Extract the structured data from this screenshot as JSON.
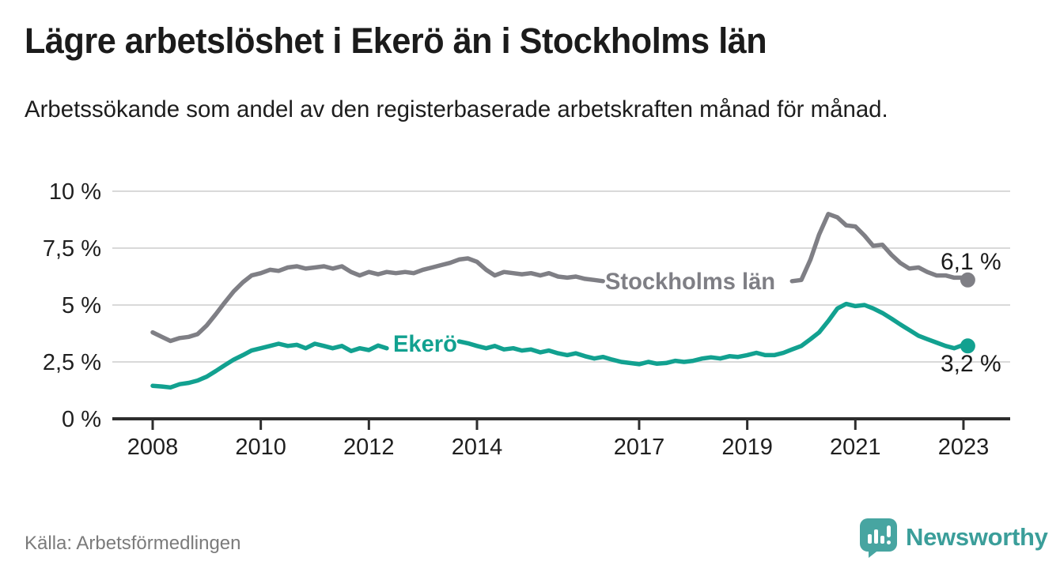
{
  "header": {
    "title": "Lägre arbetslöshet i Ekerö än i Stockholms län",
    "subtitle": "Arbetssökande som andel av den registerbaserade arbetskraften månad för månad."
  },
  "footer": {
    "source": "Källa: Arbetsförmedlingen",
    "brand": "Newsworthy",
    "brand_icon": "speech-bubble-bar-chart-icon"
  },
  "colors": {
    "stockholm": "#7f7f85",
    "ekero": "#12a190",
    "grid": "#d9d9d9",
    "axis": "#2d2d2d",
    "tick_text": "#1f1f1f",
    "value_text": "#1a1a1a",
    "muted_text": "#7b7b7b",
    "brand": "#3b9e9a"
  },
  "chart_data": {
    "type": "line",
    "title": "Lägre arbetslöshet i Ekerö än i Stockholms län",
    "xlabel": "",
    "ylabel": "",
    "ylim": [
      0,
      10
    ],
    "xlim": [
      2007.25,
      2023.95
    ],
    "grid": "horizontal",
    "legend_position": "inline-on-line",
    "yticks": [
      0,
      2.5,
      5,
      7.5,
      10
    ],
    "ytick_labels": [
      "0 %",
      "2,5 %",
      "5 %",
      "7,5 %",
      "10 %"
    ],
    "xticks": [
      2008,
      2010,
      2012,
      2014,
      2017,
      2019,
      2021,
      2023
    ],
    "xtick_labels": [
      "2008",
      "2010",
      "2012",
      "2014",
      "2017",
      "2019",
      "2021",
      "2023"
    ],
    "x": [
      2008,
      2008.17,
      2008.33,
      2008.5,
      2008.67,
      2008.83,
      2009,
      2009.17,
      2009.33,
      2009.5,
      2009.67,
      2009.83,
      2010,
      2010.17,
      2010.33,
      2010.5,
      2010.67,
      2010.83,
      2011,
      2011.17,
      2011.33,
      2011.5,
      2011.67,
      2011.83,
      2012,
      2012.17,
      2012.33,
      2012.5,
      2012.67,
      2012.83,
      2013,
      2013.17,
      2013.33,
      2013.5,
      2013.67,
      2013.83,
      2014,
      2014.17,
      2014.33,
      2014.5,
      2014.67,
      2014.83,
      2015,
      2015.17,
      2015.33,
      2015.5,
      2015.67,
      2015.83,
      2016,
      2016.17,
      2016.33,
      2016.5,
      2016.67,
      2016.83,
      2017,
      2017.17,
      2017.33,
      2017.5,
      2017.67,
      2017.83,
      2018,
      2018.17,
      2018.33,
      2018.5,
      2018.67,
      2018.83,
      2019,
      2019.17,
      2019.33,
      2019.5,
      2019.67,
      2019.83,
      2020,
      2020.17,
      2020.33,
      2020.5,
      2020.67,
      2020.83,
      2021,
      2021.17,
      2021.33,
      2021.5,
      2021.67,
      2021.83,
      2022,
      2022.17,
      2022.33,
      2022.5,
      2022.67,
      2022.83,
      2023,
      2023.08
    ],
    "series": [
      {
        "id": "stockholm",
        "name": "Stockholms län",
        "color_key": "stockholm",
        "end_label": "6,1 %",
        "end_value": 6.1,
        "label_gap": [
          2016.4,
          2019.8
        ],
        "values": [
          3.8,
          3.6,
          3.42,
          3.55,
          3.6,
          3.72,
          4.1,
          4.6,
          5.1,
          5.6,
          6.0,
          6.3,
          6.4,
          6.55,
          6.5,
          6.65,
          6.7,
          6.6,
          6.65,
          6.7,
          6.6,
          6.7,
          6.45,
          6.3,
          6.45,
          6.35,
          6.45,
          6.4,
          6.45,
          6.4,
          6.55,
          6.65,
          6.75,
          6.85,
          7.0,
          7.05,
          6.9,
          6.55,
          6.3,
          6.45,
          6.4,
          6.35,
          6.4,
          6.3,
          6.4,
          6.25,
          6.2,
          6.25,
          6.15,
          6.1,
          6.05,
          6.0,
          5.95,
          5.9,
          5.9,
          5.85,
          5.8,
          5.8,
          5.75,
          5.75,
          5.7,
          5.7,
          5.75,
          5.75,
          5.8,
          5.85,
          5.9,
          5.95,
          6.0,
          6.0,
          6.05,
          6.05,
          6.1,
          7.0,
          8.1,
          9.0,
          8.85,
          8.5,
          8.45,
          8.05,
          7.6,
          7.65,
          7.2,
          6.85,
          6.6,
          6.65,
          6.45,
          6.3,
          6.3,
          6.2,
          6.2,
          6.1
        ]
      },
      {
        "id": "ekero",
        "name": "Ekerö",
        "color_key": "ekero",
        "end_label": "3,2 %",
        "end_value": 3.2,
        "label_gap": [
          2012.4,
          2013.6
        ],
        "values": [
          1.45,
          1.42,
          1.38,
          1.52,
          1.58,
          1.68,
          1.85,
          2.1,
          2.35,
          2.6,
          2.8,
          3.0,
          3.1,
          3.2,
          3.3,
          3.2,
          3.25,
          3.1,
          3.3,
          3.2,
          3.1,
          3.2,
          2.98,
          3.1,
          3.02,
          3.22,
          3.1,
          3.15,
          3.18,
          3.2,
          3.25,
          3.3,
          3.35,
          3.4,
          3.4,
          3.32,
          3.2,
          3.1,
          3.2,
          3.05,
          3.1,
          3.0,
          3.05,
          2.92,
          3.0,
          2.88,
          2.8,
          2.88,
          2.75,
          2.65,
          2.72,
          2.6,
          2.5,
          2.45,
          2.4,
          2.5,
          2.42,
          2.45,
          2.55,
          2.5,
          2.55,
          2.65,
          2.7,
          2.65,
          2.75,
          2.72,
          2.8,
          2.9,
          2.8,
          2.8,
          2.9,
          3.05,
          3.2,
          3.5,
          3.8,
          4.3,
          4.85,
          5.05,
          4.95,
          5.0,
          4.85,
          4.65,
          4.4,
          4.15,
          3.9,
          3.65,
          3.5,
          3.35,
          3.2,
          3.1,
          3.25,
          3.2
        ]
      }
    ]
  }
}
